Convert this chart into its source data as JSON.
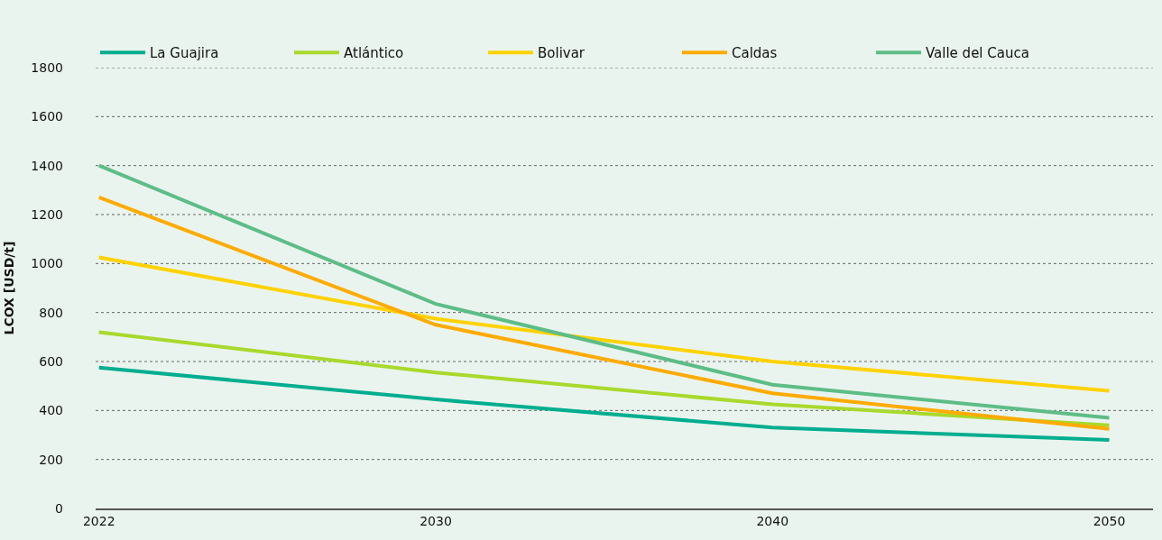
{
  "chart_data": {
    "type": "line",
    "ylabel": "LCOX [USD/t]",
    "categories": [
      "2022",
      "2030",
      "2040",
      "2050"
    ],
    "series": [
      {
        "name": "La Guajira",
        "color": "#00ae8f",
        "values": [
          575,
          445,
          330,
          280
        ]
      },
      {
        "name": "Atlántico",
        "color": "#a8d92c",
        "values": [
          720,
          555,
          425,
          340
        ]
      },
      {
        "name": "Bolivar",
        "color": "#ffd200",
        "values": [
          1025,
          775,
          600,
          480
        ]
      },
      {
        "name": "Caldas",
        "color": "#ffab00",
        "values": [
          1270,
          750,
          470,
          325
        ]
      },
      {
        "name": "Valle del Cauca",
        "color": "#5dbd87",
        "values": [
          1400,
          835,
          505,
          370
        ]
      }
    ],
    "ylim": [
      0,
      1800
    ],
    "yticks": [
      0,
      200,
      400,
      600,
      800,
      1000,
      1200,
      1400,
      1600,
      1800
    ],
    "grid": "y",
    "legend": "top",
    "marker": "none",
    "line_style": "solid"
  }
}
